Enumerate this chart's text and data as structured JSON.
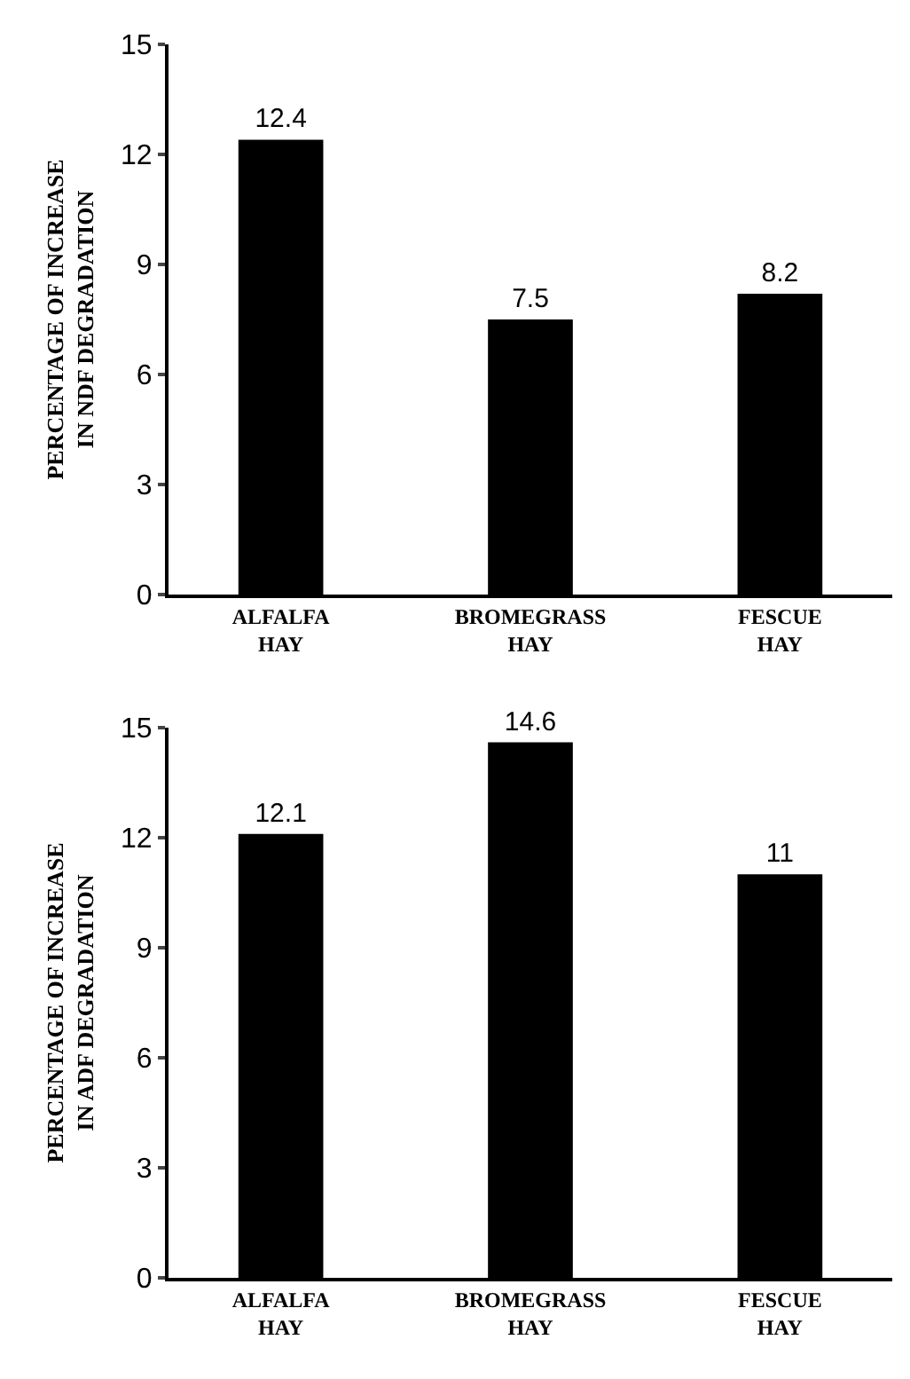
{
  "chart_data": [
    {
      "type": "bar",
      "ylabel": "PERCENTAGE OF INCREASE\nIN NDF DEGRADATION",
      "categories": [
        "ALFALFA HAY",
        "BROMEGRASS HAY",
        "FESCUE HAY"
      ],
      "values": [
        12.4,
        7.5,
        8.2
      ],
      "color": "#000000",
      "ylim": [
        0,
        15
      ],
      "yticks": [
        0,
        3,
        6,
        9,
        12,
        15
      ],
      "data_labels": true,
      "grid": false,
      "legend": false
    },
    {
      "type": "bar",
      "ylabel": "PERCENTAGE OF INCREASE\nIN ADF DEGRADATION",
      "categories": [
        "ALFALFA HAY",
        "BROMEGRASS HAY",
        "FESCUE HAY"
      ],
      "values": [
        12.1,
        14.6,
        11
      ],
      "color": "#000000",
      "ylim": [
        0,
        15
      ],
      "yticks": [
        0,
        3,
        6,
        9,
        12,
        15
      ],
      "data_labels": true,
      "grid": false,
      "legend": false
    }
  ]
}
